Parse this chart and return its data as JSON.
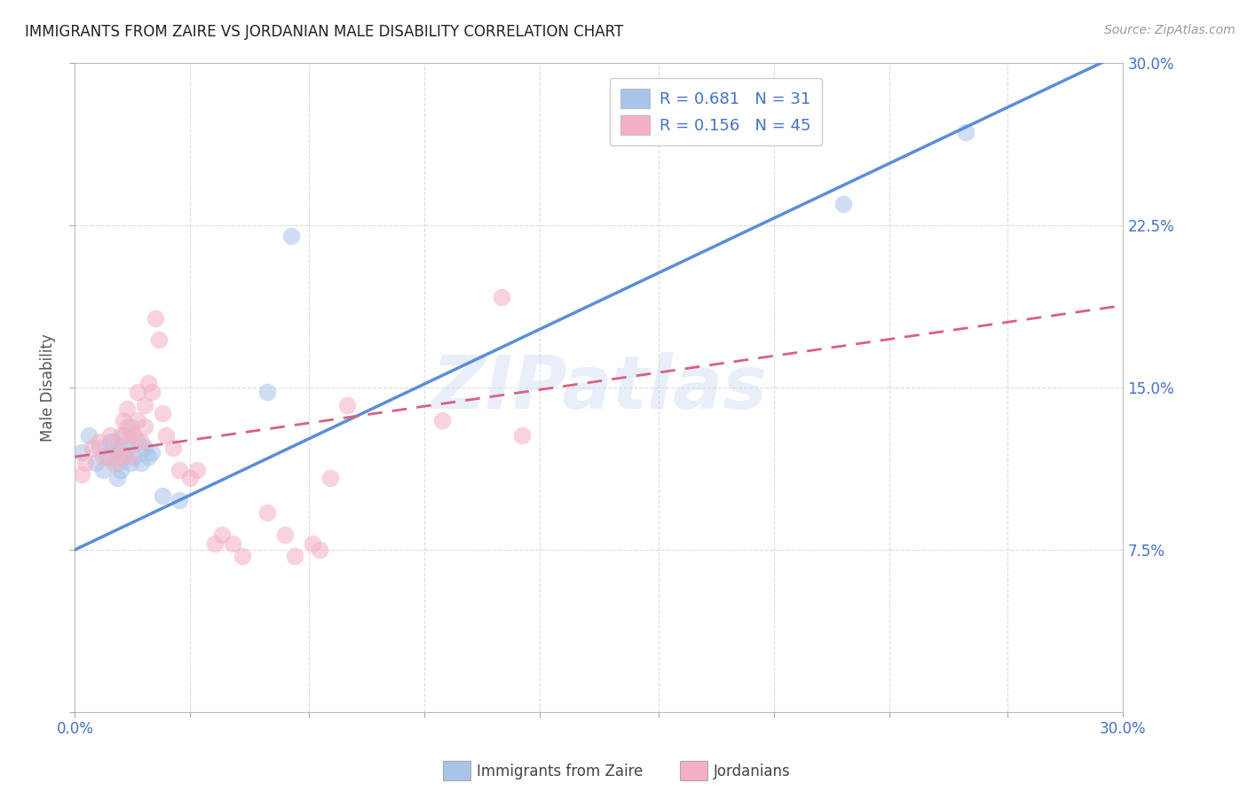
{
  "title": "IMMIGRANTS FROM ZAIRE VS JORDANIAN MALE DISABILITY CORRELATION CHART",
  "source": "Source: ZipAtlas.com",
  "ylabel": "Male Disability",
  "xlim": [
    0.0,
    0.3
  ],
  "ylim": [
    0.0,
    0.3
  ],
  "xticks": [
    0.0,
    0.033,
    0.067,
    0.1,
    0.133,
    0.167,
    0.2,
    0.233,
    0.267,
    0.3
  ],
  "yticks": [
    0.0,
    0.075,
    0.15,
    0.225,
    0.3
  ],
  "legend_label1": "Immigrants from Zaire",
  "legend_label2": "Jordanians",
  "watermark": "ZIPatlas",
  "blue_color": "#a8c4e8",
  "pink_color": "#f4b0c4",
  "blue_line_color": "#5b8dd9",
  "pink_line_color": "#d96080",
  "title_color": "#222222",
  "axis_label_color": "#4472c4",
  "grid_color": "#d8d8d8",
  "blue_scatter_x": [
    0.002,
    0.004,
    0.006,
    0.007,
    0.008,
    0.009,
    0.01,
    0.01,
    0.011,
    0.012,
    0.012,
    0.013,
    0.013,
    0.014,
    0.014,
    0.015,
    0.016,
    0.016,
    0.017,
    0.018,
    0.019,
    0.02,
    0.021,
    0.022,
    0.025,
    0.03,
    0.055,
    0.062,
    0.22,
    0.255
  ],
  "blue_scatter_y": [
    0.12,
    0.128,
    0.115,
    0.122,
    0.112,
    0.118,
    0.125,
    0.118,
    0.125,
    0.108,
    0.115,
    0.122,
    0.112,
    0.128,
    0.118,
    0.122,
    0.132,
    0.115,
    0.118,
    0.125,
    0.115,
    0.122,
    0.118,
    0.12,
    0.1,
    0.098,
    0.148,
    0.22,
    0.235,
    0.268
  ],
  "pink_scatter_x": [
    0.002,
    0.003,
    0.005,
    0.007,
    0.008,
    0.01,
    0.011,
    0.012,
    0.013,
    0.013,
    0.014,
    0.015,
    0.015,
    0.016,
    0.016,
    0.017,
    0.018,
    0.018,
    0.019,
    0.02,
    0.02,
    0.021,
    0.022,
    0.023,
    0.024,
    0.025,
    0.026,
    0.028,
    0.03,
    0.033,
    0.035,
    0.04,
    0.042,
    0.045,
    0.048,
    0.055,
    0.06,
    0.063,
    0.068,
    0.07,
    0.073,
    0.078,
    0.105,
    0.122,
    0.128
  ],
  "pink_scatter_y": [
    0.11,
    0.115,
    0.122,
    0.125,
    0.118,
    0.128,
    0.115,
    0.122,
    0.128,
    0.118,
    0.135,
    0.132,
    0.14,
    0.128,
    0.118,
    0.128,
    0.148,
    0.135,
    0.125,
    0.142,
    0.132,
    0.152,
    0.148,
    0.182,
    0.172,
    0.138,
    0.128,
    0.122,
    0.112,
    0.108,
    0.112,
    0.078,
    0.082,
    0.078,
    0.072,
    0.092,
    0.082,
    0.072,
    0.078,
    0.075,
    0.108,
    0.142,
    0.135,
    0.192,
    0.128
  ],
  "blue_trend_x": [
    0.0,
    0.3
  ],
  "blue_trend_y": [
    0.075,
    0.305
  ],
  "pink_trend_x": [
    0.0,
    0.3
  ],
  "pink_trend_y": [
    0.118,
    0.188
  ]
}
